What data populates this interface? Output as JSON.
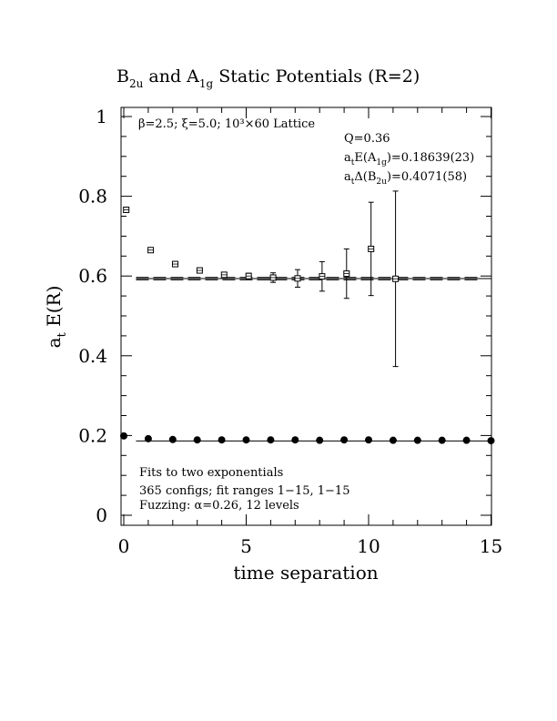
{
  "chart_data": {
    "type": "scatter",
    "title": {
      "main1": "B",
      "sub1": "2u",
      "mid": " and A",
      "sub2": "1g",
      "rest": " Static Potentials (R=2)"
    },
    "xlabel": "time separation",
    "ylabel": {
      "base": "a",
      "sub": "t",
      "rest": " E(R)"
    },
    "xlim": [
      0,
      15
    ],
    "ylim": [
      -0.02,
      1.02
    ],
    "x_ticks": [
      "0",
      "5",
      "10",
      "15"
    ],
    "y_ticks": [
      "0",
      "0.2",
      "0.4",
      "0.6",
      "0.8",
      "1"
    ],
    "annotations": {
      "params": "β=2.5; ξ=5.0; 10³×60 Lattice",
      "q": "Q=0.36",
      "e_base": "a",
      "e_sub_t": "t",
      "e_mid": "E(A",
      "e_sub": "1g",
      "e_rest": ")=0.18639(23)",
      "d_base": "a",
      "d_sub_t": "t",
      "d_mid": "Δ(B",
      "d_sub": "2u",
      "d_rest": ")=0.4071(58)",
      "fits": "Fits to two exponentials",
      "configs": "365 configs; fit ranges 1−15, 1−15",
      "fuzz": "Fuzzing: α=0.26, 12 levels"
    },
    "series": [
      {
        "marker": "filled-circle",
        "points": [
          {
            "x": 0,
            "y": 0.199
          },
          {
            "x": 1,
            "y": 0.192
          },
          {
            "x": 2,
            "y": 0.19
          },
          {
            "x": 3,
            "y": 0.189
          },
          {
            "x": 4,
            "y": 0.189
          },
          {
            "x": 5,
            "y": 0.189
          },
          {
            "x": 6,
            "y": 0.189
          },
          {
            "x": 7,
            "y": 0.189
          },
          {
            "x": 8,
            "y": 0.188
          },
          {
            "x": 9,
            "y": 0.189
          },
          {
            "x": 10,
            "y": 0.189
          },
          {
            "x": 11,
            "y": 0.188
          },
          {
            "x": 12,
            "y": 0.188
          },
          {
            "x": 13,
            "y": 0.188
          },
          {
            "x": 14,
            "y": 0.188
          },
          {
            "x": 15,
            "y": 0.187
          }
        ]
      },
      {
        "marker": "open-square",
        "points": [
          {
            "x": 0.1,
            "y": 0.766,
            "err": 0.004
          },
          {
            "x": 1.1,
            "y": 0.665,
            "err": 0.004
          },
          {
            "x": 2.1,
            "y": 0.63,
            "err": 0.004
          },
          {
            "x": 3.1,
            "y": 0.614,
            "err": 0.005
          },
          {
            "x": 4.1,
            "y": 0.603,
            "err": 0.006
          },
          {
            "x": 5.1,
            "y": 0.6,
            "err": 0.007
          },
          {
            "x": 6.1,
            "y": 0.596,
            "err": 0.012
          },
          {
            "x": 7.1,
            "y": 0.594,
            "err": 0.022
          },
          {
            "x": 8.1,
            "y": 0.599,
            "err": 0.037
          },
          {
            "x": 9.1,
            "y": 0.606,
            "err": 0.062
          },
          {
            "x": 10.1,
            "y": 0.668,
            "err": 0.117
          },
          {
            "x": 11.1,
            "y": 0.593,
            "err": 0.22
          }
        ]
      }
    ],
    "fit_lines": [
      {
        "x": [
          0.5,
          15
        ],
        "y": 0.1864,
        "style": "solid"
      },
      {
        "x": [
          0.5,
          15
        ],
        "y": 0.5935,
        "style": "solid"
      },
      {
        "x": [
          0.5,
          14.5
        ],
        "y": 0.5905,
        "style": "dashed"
      },
      {
        "x": [
          0.5,
          14.5
        ],
        "y": 0.5965,
        "style": "dashed"
      }
    ]
  }
}
